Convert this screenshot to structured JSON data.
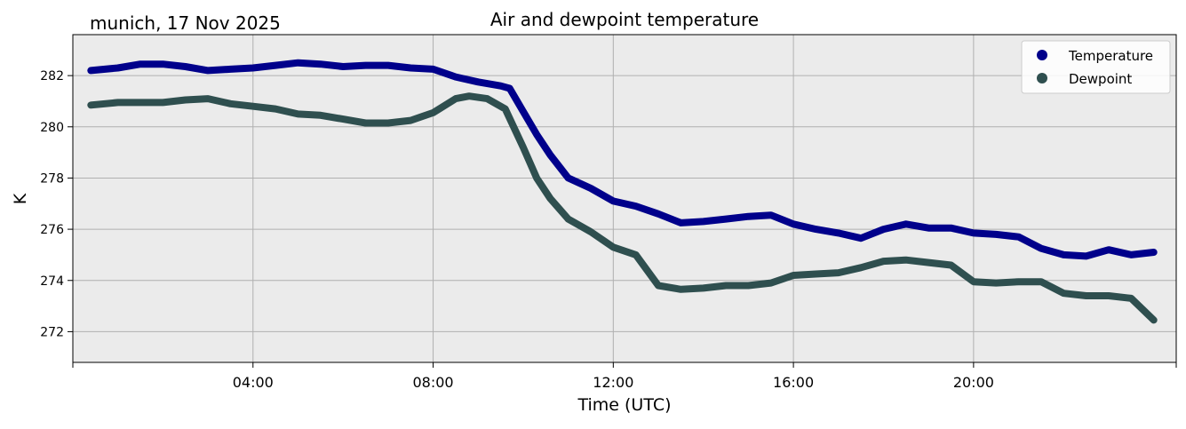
{
  "chart_data": {
    "type": "line",
    "title": "Air and dewpoint temperature",
    "subtitle": "munich, 17 Nov 2025",
    "xlabel": "Time (UTC)",
    "ylabel": "K",
    "xlim": [
      0,
      24.5
    ],
    "ylim": [
      270.8,
      283.6
    ],
    "x_ticks": [
      {
        "value": 4,
        "label": "04:00"
      },
      {
        "value": 8,
        "label": "08:00"
      },
      {
        "value": 12,
        "label": "12:00"
      },
      {
        "value": 16,
        "label": "16:00"
      },
      {
        "value": 20,
        "label": "20:00"
      },
      {
        "value": 24.5,
        "label": ""
      },
      {
        "value": 0,
        "label": ""
      }
    ],
    "y_ticks": [
      272,
      274,
      276,
      278,
      280,
      282
    ],
    "grid": true,
    "legend_position": "top-right",
    "series": [
      {
        "name": "Temperature",
        "color": "#00008b",
        "raw_color": "#7fa6a3",
        "x": [
          0.4,
          1.0,
          1.5,
          2.0,
          2.5,
          3.0,
          3.5,
          4.0,
          4.5,
          5.0,
          5.5,
          6.0,
          6.5,
          7.0,
          7.5,
          8.0,
          8.5,
          9.0,
          9.5,
          9.7,
          10.0,
          10.3,
          10.6,
          11.0,
          11.5,
          12.0,
          12.5,
          13.0,
          13.5,
          14.0,
          14.5,
          15.0,
          15.5,
          16.0,
          16.5,
          17.0,
          17.5,
          18.0,
          18.5,
          19.0,
          19.5,
          20.0,
          20.5,
          21.0,
          21.5,
          22.0,
          22.5,
          23.0,
          23.5,
          24.0
        ],
        "values": [
          282.2,
          282.3,
          282.45,
          282.45,
          282.35,
          282.2,
          282.25,
          282.3,
          282.4,
          282.5,
          282.45,
          282.35,
          282.4,
          282.4,
          282.3,
          282.25,
          281.95,
          281.75,
          281.6,
          281.5,
          280.6,
          279.7,
          278.9,
          278.0,
          277.6,
          277.1,
          276.9,
          276.6,
          276.25,
          276.3,
          276.4,
          276.5,
          276.55,
          276.2,
          276.0,
          275.85,
          275.65,
          276.0,
          276.2,
          276.05,
          276.05,
          275.85,
          275.8,
          275.7,
          275.25,
          275.0,
          274.95,
          275.2,
          275.0,
          275.1
        ]
      },
      {
        "name": "Dewpoint",
        "color": "#2f4f4f",
        "raw_color": "#1e9be8",
        "x": [
          0.4,
          1.0,
          1.5,
          2.0,
          2.5,
          3.0,
          3.5,
          4.0,
          4.5,
          5.0,
          5.5,
          6.0,
          6.5,
          7.0,
          7.5,
          8.0,
          8.5,
          8.8,
          9.2,
          9.6,
          10.0,
          10.3,
          10.6,
          11.0,
          11.5,
          12.0,
          12.5,
          13.0,
          13.5,
          14.0,
          14.5,
          15.0,
          15.5,
          16.0,
          16.5,
          17.0,
          17.5,
          18.0,
          18.5,
          19.0,
          19.5,
          20.0,
          20.5,
          21.0,
          21.5,
          22.0,
          22.5,
          23.0,
          23.5,
          24.0
        ],
        "values": [
          280.85,
          280.95,
          280.95,
          280.95,
          281.05,
          281.1,
          280.9,
          280.8,
          280.7,
          280.5,
          280.45,
          280.3,
          280.15,
          280.15,
          280.25,
          280.55,
          281.1,
          281.2,
          281.1,
          280.7,
          279.2,
          278.0,
          277.2,
          276.4,
          275.9,
          275.3,
          275.0,
          273.8,
          273.65,
          273.7,
          273.8,
          273.8,
          273.9,
          274.2,
          274.25,
          274.3,
          274.5,
          274.75,
          274.8,
          274.7,
          274.6,
          273.95,
          273.9,
          273.95,
          273.95,
          273.5,
          273.4,
          273.4,
          273.3,
          272.45
        ]
      }
    ]
  }
}
